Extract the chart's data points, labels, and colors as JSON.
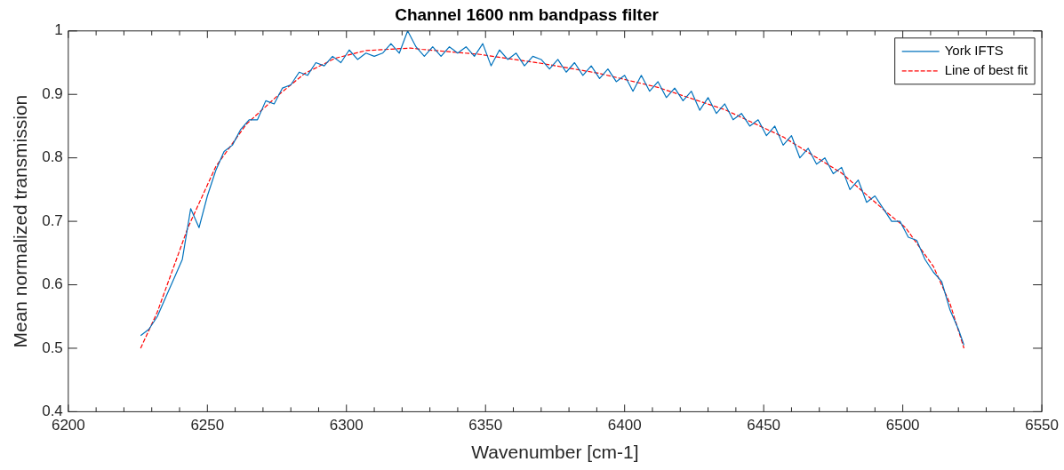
{
  "chart_data": {
    "type": "line",
    "title": "Channel 1600 nm bandpass filter",
    "xlabel": "Wavenumber [cm-1]",
    "ylabel": "Mean normalized transmission",
    "xlim": [
      6200,
      6550
    ],
    "xticks": [
      6200,
      {
        "value": 6210,
        "label": null
      },
      {
        "value": 6220,
        "label": null
      },
      {
        "value": 6230,
        "label": null
      },
      {
        "value": 6240,
        "label": null
      },
      6250,
      {
        "value": 6260,
        "label": null
      },
      {
        "value": 6270,
        "label": null
      },
      {
        "value": 6280,
        "label": null
      },
      {
        "value": 6290,
        "label": null
      },
      6300,
      {
        "value": 6310,
        "label": null
      },
      {
        "value": 6320,
        "label": null
      },
      {
        "value": 6330,
        "label": null
      },
      {
        "value": 6340,
        "label": null
      },
      6350,
      {
        "value": 6360,
        "label": null
      },
      {
        "value": 6370,
        "label": null
      },
      {
        "value": 6380,
        "label": null
      },
      {
        "value": 6390,
        "label": null
      },
      6400,
      {
        "value": 6410,
        "label": null
      },
      {
        "value": 6420,
        "label": null
      },
      {
        "value": 6430,
        "label": null
      },
      {
        "value": 6440,
        "label": null
      },
      6450,
      {
        "value": 6460,
        "label": null
      },
      {
        "value": 6470,
        "label": null
      },
      {
        "value": 6480,
        "label": null
      },
      {
        "value": 6490,
        "label": null
      },
      6500,
      {
        "value": 6510,
        "label": null
      },
      {
        "value": 6520,
        "label": null
      },
      {
        "value": 6530,
        "label": null
      },
      {
        "value": 6540,
        "label": null
      },
      6550
    ],
    "ylim": [
      0.4,
      1
    ],
    "yticks": [
      0.4,
      0.5,
      0.6,
      0.7,
      0.8,
      0.9,
      1
    ],
    "grid": false,
    "legend": "top right",
    "marker": "none",
    "series": [
      {
        "name": "York IFTS",
        "color": "#0072bd",
        "line_style": "solid",
        "x": [
          6226,
          6229,
          6232,
          6235,
          6238,
          6241,
          6244,
          6247,
          6250,
          6253,
          6256,
          6259,
          6262,
          6265,
          6268,
          6271,
          6274,
          6277,
          6280,
          6283,
          6286,
          6289,
          6292,
          6295,
          6298,
          6301,
          6304,
          6307,
          6310,
          6313,
          6316,
          6319,
          6322,
          6325,
          6328,
          6331,
          6334,
          6337,
          6340,
          6343,
          6346,
          6349,
          6352,
          6355,
          6358,
          6361,
          6364,
          6367,
          6370,
          6373,
          6376,
          6379,
          6382,
          6385,
          6388,
          6391,
          6394,
          6397,
          6400,
          6403,
          6406,
          6409,
          6412,
          6415,
          6418,
          6421,
          6424,
          6427,
          6430,
          6433,
          6436,
          6439,
          6442,
          6445,
          6448,
          6451,
          6454,
          6457,
          6460,
          6463,
          6466,
          6469,
          6472,
          6475,
          6478,
          6481,
          6484,
          6487,
          6490,
          6493,
          6496,
          6499,
          6502,
          6505,
          6508,
          6511,
          6514,
          6517,
          6520,
          6522
        ],
        "values": [
          0.52,
          0.53,
          0.55,
          0.58,
          0.61,
          0.64,
          0.72,
          0.69,
          0.74,
          0.78,
          0.81,
          0.82,
          0.845,
          0.86,
          0.86,
          0.89,
          0.885,
          0.91,
          0.915,
          0.935,
          0.93,
          0.95,
          0.945,
          0.96,
          0.95,
          0.97,
          0.955,
          0.965,
          0.96,
          0.965,
          0.98,
          0.965,
          1.0,
          0.975,
          0.96,
          0.975,
          0.96,
          0.975,
          0.965,
          0.975,
          0.96,
          0.98,
          0.945,
          0.97,
          0.955,
          0.965,
          0.945,
          0.96,
          0.955,
          0.94,
          0.955,
          0.935,
          0.95,
          0.93,
          0.945,
          0.925,
          0.94,
          0.92,
          0.93,
          0.905,
          0.93,
          0.905,
          0.92,
          0.895,
          0.91,
          0.89,
          0.905,
          0.875,
          0.895,
          0.87,
          0.885,
          0.86,
          0.87,
          0.85,
          0.86,
          0.835,
          0.85,
          0.82,
          0.835,
          0.8,
          0.815,
          0.79,
          0.8,
          0.775,
          0.785,
          0.75,
          0.765,
          0.73,
          0.74,
          0.72,
          0.7,
          0.7,
          0.675,
          0.67,
          0.64,
          0.62,
          0.605,
          0.56,
          0.53,
          0.505
        ]
      },
      {
        "name": "Line of best fit",
        "color": "#ff0000",
        "line_style": "dashed",
        "x": [
          6226,
          6232,
          6243,
          6253,
          6264,
          6275,
          6285,
          6296,
          6307,
          6323,
          6327,
          6348,
          6370,
          6391,
          6412,
          6436,
          6457,
          6478,
          6494,
          6501,
          6511,
          6517,
          6522
        ],
        "values": [
          0.5,
          0.557,
          0.69,
          0.786,
          0.853,
          0.897,
          0.933,
          0.957,
          0.969,
          0.973,
          0.971,
          0.963,
          0.949,
          0.933,
          0.911,
          0.876,
          0.833,
          0.776,
          0.715,
          0.69,
          0.629,
          0.57,
          0.5
        ]
      }
    ]
  }
}
